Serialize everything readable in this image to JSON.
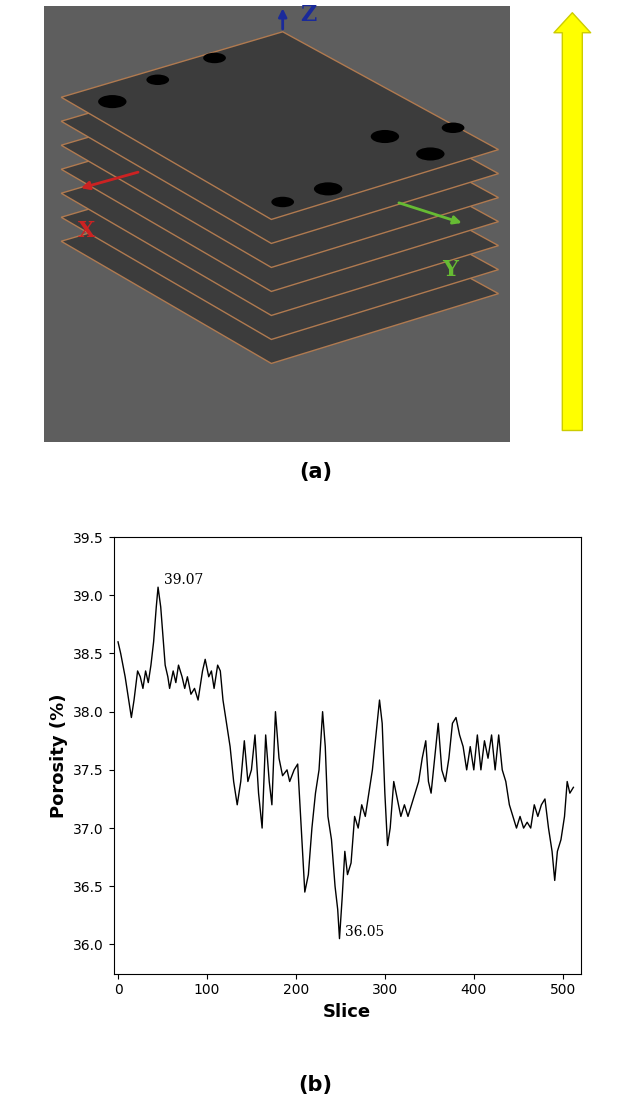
{
  "panel_labels": [
    "(a)",
    "(b)"
  ],
  "diagram": {
    "axis_labels": [
      {
        "text": "Z",
        "color": "#1a2a9a"
      },
      {
        "text": "X",
        "color": "#cc2222"
      },
      {
        "text": "Y",
        "color": "#66bb33"
      }
    ],
    "slices": 7
  },
  "chart_data": {
    "type": "line",
    "color": "#000000",
    "x_label": "Slice",
    "y_label": "Porosity (%)",
    "x": [
      0,
      3,
      8,
      12,
      15,
      18,
      22,
      25,
      28,
      31,
      34,
      37,
      40,
      43,
      45,
      48,
      50,
      53,
      56,
      58,
      62,
      65,
      68,
      72,
      75,
      78,
      82,
      86,
      90,
      95,
      98,
      102,
      105,
      108,
      112,
      115,
      118,
      122,
      126,
      130,
      134,
      138,
      142,
      146,
      150,
      154,
      158,
      162,
      166,
      170,
      173,
      177,
      181,
      185,
      190,
      193,
      198,
      202,
      206,
      210,
      214,
      218,
      222,
      226,
      230,
      233,
      236,
      240,
      244,
      247,
      249,
      252,
      255,
      258,
      262,
      266,
      270,
      274,
      278,
      282,
      286,
      290,
      294,
      297,
      300,
      303,
      306,
      310,
      314,
      318,
      322,
      326,
      330,
      334,
      338,
      342,
      346,
      349,
      352,
      356,
      360,
      364,
      368,
      372,
      376,
      380,
      384,
      388,
      392,
      396,
      400,
      404,
      408,
      412,
      416,
      420,
      424,
      428,
      432,
      436,
      440,
      444,
      448,
      452,
      456,
      460,
      464,
      468,
      472,
      476,
      480,
      484,
      488,
      491,
      494,
      498,
      502,
      505,
      508,
      512
    ],
    "values": [
      38.6,
      38.5,
      38.3,
      38.1,
      37.95,
      38.1,
      38.35,
      38.3,
      38.2,
      38.35,
      38.25,
      38.4,
      38.6,
      38.9,
      39.07,
      38.9,
      38.7,
      38.4,
      38.3,
      38.2,
      38.35,
      38.25,
      38.4,
      38.3,
      38.2,
      38.3,
      38.15,
      38.2,
      38.1,
      38.35,
      38.45,
      38.3,
      38.35,
      38.2,
      38.4,
      38.35,
      38.1,
      37.9,
      37.7,
      37.4,
      37.2,
      37.4,
      37.75,
      37.4,
      37.5,
      37.8,
      37.3,
      37.0,
      37.8,
      37.4,
      37.2,
      38.0,
      37.6,
      37.45,
      37.5,
      37.4,
      37.5,
      37.55,
      37.0,
      36.45,
      36.6,
      37.0,
      37.3,
      37.5,
      38.0,
      37.7,
      37.1,
      36.9,
      36.5,
      36.3,
      36.05,
      36.4,
      36.8,
      36.6,
      36.7,
      37.1,
      37.0,
      37.2,
      37.1,
      37.3,
      37.5,
      37.8,
      38.1,
      37.9,
      37.3,
      36.85,
      37.0,
      37.4,
      37.25,
      37.1,
      37.2,
      37.1,
      37.2,
      37.3,
      37.4,
      37.6,
      37.75,
      37.4,
      37.3,
      37.6,
      37.9,
      37.5,
      37.4,
      37.6,
      37.9,
      37.95,
      37.8,
      37.7,
      37.5,
      37.7,
      37.5,
      37.8,
      37.5,
      37.75,
      37.6,
      37.8,
      37.5,
      37.8,
      37.5,
      37.4,
      37.2,
      37.1,
      37.0,
      37.1,
      37.0,
      37.05,
      37.0,
      37.2,
      37.1,
      37.2,
      37.25,
      37.0,
      36.8,
      36.55,
      36.8,
      36.9,
      37.1,
      37.4,
      37.3,
      37.35
    ],
    "xlim": [
      -5,
      520
    ],
    "xticks": [
      0,
      100,
      200,
      300,
      400,
      500
    ],
    "ylim": [
      35.75,
      39.5
    ],
    "yticks": [
      36.0,
      36.5,
      37.0,
      37.5,
      38.0,
      38.5,
      39.0,
      39.5
    ],
    "annotations": [
      {
        "text": "39.07",
        "x": 45,
        "y": 39.07
      },
      {
        "text": "36.05",
        "x": 249,
        "y": 36.05
      }
    ]
  }
}
